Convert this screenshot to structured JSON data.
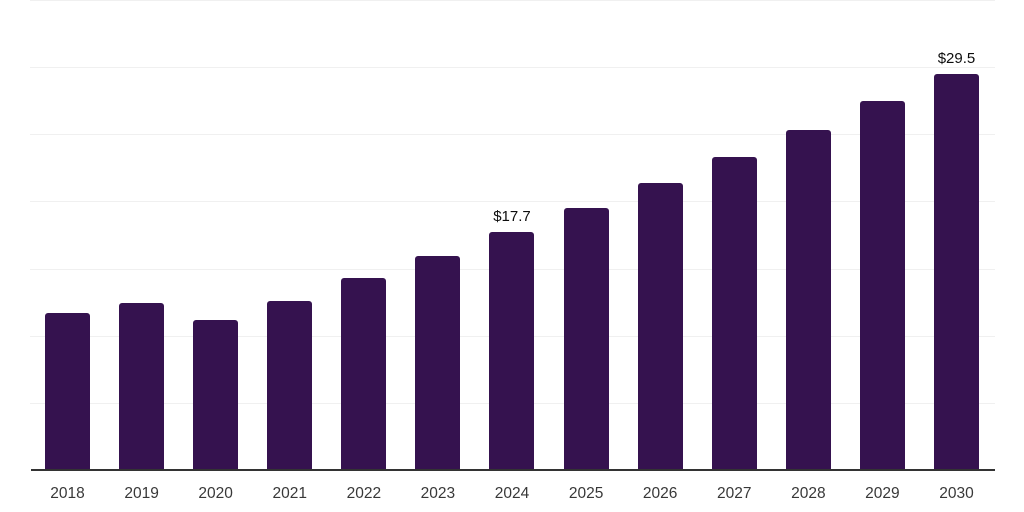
{
  "chart_data": {
    "type": "bar",
    "title": "",
    "xlabel": "",
    "ylabel": "",
    "categories": [
      "2018",
      "2019",
      "2020",
      "2021",
      "2022",
      "2023",
      "2024",
      "2025",
      "2026",
      "2027",
      "2028",
      "2029",
      "2030"
    ],
    "values": [
      11.7,
      12.4,
      11.2,
      12.6,
      14.3,
      15.9,
      17.7,
      19.5,
      21.4,
      23.3,
      25.3,
      27.5,
      29.5
    ],
    "value_labels": [
      null,
      null,
      null,
      null,
      null,
      null,
      "$17.7",
      null,
      null,
      null,
      null,
      null,
      "$29.5"
    ],
    "ylim": [
      0,
      35
    ],
    "gridline_step": 5,
    "grid_visible": true,
    "legend_visible": false,
    "y_tick_labels_visible": false,
    "bar_color": "#35124F",
    "axis_line_color": "#333333",
    "gridline_color": "#f0f0f0",
    "tick_label_color": "#383838",
    "value_label_color": "#0d0d0d"
  }
}
